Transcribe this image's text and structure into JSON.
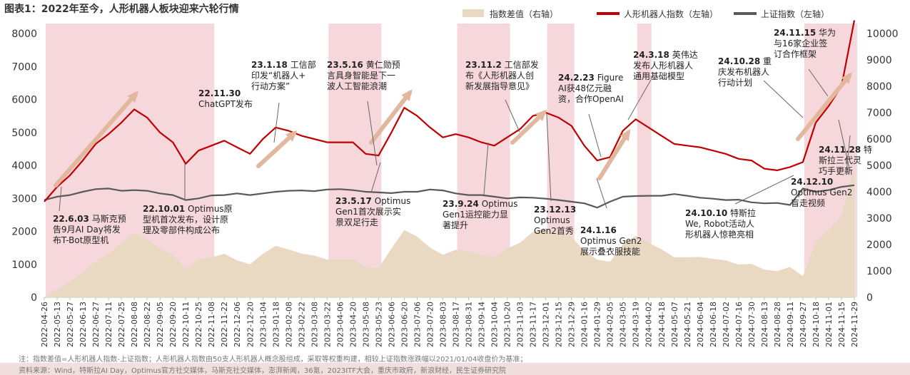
{
  "title": "图表1：2022年至今，人形机器人板块迎来六轮行情",
  "note": "注：指数差值=人形机器人指数-上证指数；人形机器人指数由50支人形机器人概念股组成，采取等权重构建，相较上证指数涨跌幅以2021/01/04收盘价为基准；",
  "source": "资料来源：Wind，特斯拉AI Day，Optimus官方社交媒体，马斯克社交媒体，澎湃新闻，36氪，2023ITF大会，重庆市政府，新浪财经，民生证券研究院",
  "colors": {
    "band": "#f6d8dc",
    "area": "#ead9c2",
    "red": "#c00000",
    "gray": "#595959",
    "arrow": "#e1b89e"
  },
  "chart_data": {
    "type": "line",
    "legend_position": "top-right",
    "legend": [
      "指数差值（右轴）",
      "人形机器人指数（左轴）",
      "上证指数（左轴）"
    ],
    "y_left": {
      "min": 0,
      "max": 8000,
      "ticks": [
        "0",
        "1000",
        "2000",
        "3000",
        "4000",
        "5000",
        "6000",
        "7000",
        "8000"
      ]
    },
    "y_right": {
      "min": 0,
      "max": 10000,
      "ticks": [
        "0",
        "1000",
        "2000",
        "3000",
        "4000",
        "5000",
        "6000",
        "7000",
        "8000",
        "9000",
        "10000"
      ]
    },
    "x_ticks": [
      "2022-04-26",
      "2022-05-13",
      "2022-05-27",
      "2022-06-13",
      "2022-06-27",
      "2022-07-11",
      "2022-07-25",
      "2022-08-08",
      "2022-08-22",
      "2022-09-05",
      "2022-09-20",
      "2022-10-11",
      "2022-10-25",
      "2022-11-08",
      "2022-11-22",
      "2022-12-06",
      "2022-12-20",
      "2023-01-04",
      "2023-01-18",
      "2023-02-08",
      "2023-02-22",
      "2023-03-08",
      "2023-03-22",
      "2023-04-06",
      "2023-04-20",
      "2023-05-08",
      "2023-05-23",
      "2023-06-06",
      "2023-06-20",
      "2023-07-06",
      "2023-07-20",
      "2023-08-03",
      "2023-08-17",
      "2023-08-31",
      "2023-09-14",
      "2023-10-04",
      "2023-10-20",
      "2023-11-03",
      "2023-11-17",
      "2023-12-01",
      "2023-12-15",
      "2023-12-29",
      "2024-01-16",
      "2024-01-29",
      "2024-02-05",
      "2024-03-05",
      "2024-03-19",
      "2024-04-02",
      "2024-04-18",
      "2024-05-07",
      "2024-05-21",
      "2024-06-04",
      "2024-06-18",
      "2024-07-02",
      "2024-07-16",
      "2024-07-30",
      "2024-08-13",
      "2024-08-28",
      "2024-09-11",
      "2024-09-27",
      "2024-10-18",
      "2024-11-01",
      "2024-11-15",
      "2024-11-29"
    ],
    "bands": [
      [
        0,
        13
      ],
      [
        22,
        26
      ],
      [
        32,
        36
      ],
      [
        39,
        41
      ],
      [
        46,
        47
      ],
      [
        59,
        63
      ]
    ],
    "series": [
      {
        "name": "人形机器人指数（左轴）",
        "axis": "left",
        "values": [
          2900,
          3350,
          3700,
          4150,
          4650,
          4950,
          5300,
          5700,
          5450,
          5000,
          4700,
          4050,
          4450,
          4600,
          4750,
          4550,
          4350,
          4800,
          5150,
          5050,
          4900,
          4800,
          4700,
          4700,
          4700,
          4350,
          4300,
          5000,
          5750,
          5500,
          5150,
          4850,
          4950,
          4850,
          4700,
          4600,
          4850,
          5100,
          5500,
          5600,
          5450,
          5200,
          4600,
          4150,
          4250,
          5050,
          5400,
          5150,
          4900,
          4650,
          4600,
          4550,
          4450,
          4350,
          4200,
          4150,
          3900,
          3850,
          3950,
          4100,
          5300,
          5800,
          6400,
          8400
        ]
      },
      {
        "name": "上证指数（左轴）",
        "axis": "left",
        "values": [
          2950,
          3050,
          3100,
          3200,
          3280,
          3300,
          3230,
          3250,
          3230,
          3150,
          3100,
          2950,
          3000,
          3090,
          3100,
          3150,
          3100,
          3150,
          3200,
          3230,
          3240,
          3220,
          3270,
          3280,
          3250,
          3200,
          3180,
          3160,
          3200,
          3200,
          3270,
          3240,
          3150,
          3100,
          3100,
          3050,
          3000,
          3030,
          3020,
          2990,
          2950,
          2900,
          2850,
          2720,
          2900,
          3050,
          3070,
          3080,
          3080,
          3130,
          3080,
          3020,
          2990,
          2950,
          2960,
          2880,
          2850,
          2860,
          2800,
          3300,
          3200,
          3250,
          3350,
          3400
        ]
      },
      {
        "name": "指数差值（右轴）",
        "axis": "right",
        "values": [
          -50,
          300,
          600,
          950,
          1370,
          1650,
          2070,
          2450,
          2200,
          1850,
          1600,
          1100,
          1450,
          1510,
          1650,
          1400,
          1250,
          1650,
          1950,
          1820,
          1660,
          1580,
          1430,
          1420,
          1450,
          1150,
          1120,
          1840,
          2550,
          2300,
          1880,
          1610,
          1800,
          1750,
          1600,
          1550,
          1850,
          2070,
          2480,
          2610,
          2500,
          2300,
          1750,
          1430,
          1350,
          2000,
          2330,
          2070,
          1820,
          1520,
          1520,
          1530,
          1460,
          1400,
          1240,
          1270,
          1050,
          990,
          1150,
          800,
          2100,
          2550,
          3050,
          5000
        ]
      }
    ],
    "annotations": [
      {
        "text": "22.6.03 马斯克预告9月AI Day将发布T-Bot原型机"
      },
      {
        "text": "22.10.01 Optimus原型机首次发布，设计原理及零部件构成公布"
      },
      {
        "text": "22.11.30 ChatGPT发布"
      },
      {
        "text": "23.1.18 工信部印发“机器人+行动方案”"
      },
      {
        "text": "23.5.16 黄仁勋预言具身智能是下一波人工智能浪潮"
      },
      {
        "text": "23.5.17 Optimus Gen1首次展示实景双足行走"
      },
      {
        "text": "23.9.24 Optimus Gen1运控能力显著提升"
      },
      {
        "text": "23.11.2 工信部发布《人形机器人创新发展指导意见》"
      },
      {
        "text": "23.12.13 Optimus Gen2首秀"
      },
      {
        "text": "24.1.16 Optimus Gen2展示叠衣服技能"
      },
      {
        "text": "24.2.23 Figure AI获48亿元融资，合作OpenAI"
      },
      {
        "text": "24.3.18 英伟达发布人形机器人通用基础模型"
      },
      {
        "text": "24.10.10 特斯拉We, Robot活动人形机器人惊艳亮相"
      },
      {
        "text": "24.10.28 重庆发布机器人行动计划"
      },
      {
        "text": "24.11.15 华为与16家企业签订合作框架"
      },
      {
        "text": "24.11.28 特斯拉三代灵巧手更新"
      },
      {
        "text": "24.12.10 Optimus Gen2盲走视频"
      }
    ]
  }
}
